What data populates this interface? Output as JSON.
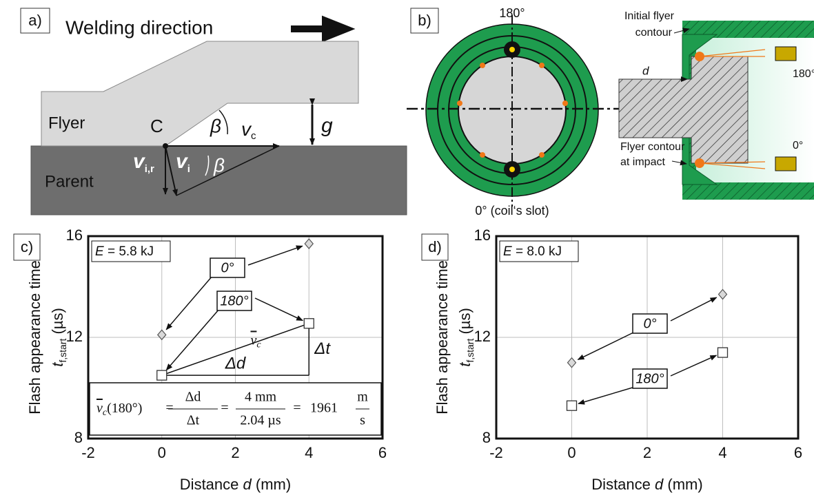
{
  "panel_a": {
    "label": "a)",
    "welding_direction": "Welding direction",
    "flyer": "Flyer",
    "parent": "Parent",
    "collision_point": "C",
    "angle": "β",
    "gap": "g",
    "collision_velocity": {
      "symbol": "v",
      "subscript": "c"
    },
    "impact_velocity": {
      "symbol": "v",
      "subscript": "i"
    },
    "radial_velocity": {
      "symbol": "v",
      "subscript": "i,r"
    }
  },
  "panel_b": {
    "label": "b)",
    "top_angle": "180°",
    "bottom_angle": "0° (coil‘s slot)",
    "initial_contour": [
      "Initial flyer",
      "contour"
    ],
    "distance": "d",
    "sensor_top": "180°",
    "sensor_bottom": "0°",
    "impact_contour": [
      "Flyer contour",
      "at impact"
    ]
  },
  "chart_data": [
    {
      "type": "scatter",
      "panel_label": "c)",
      "energy": {
        "symbol": "E",
        "text": " = 5.8 kJ"
      },
      "x_label": {
        "text": "Distance ",
        "symbol": "d",
        "unit": " (mm)"
      },
      "y_label": {
        "title": "Flash appearance time",
        "symbol": "t",
        "subscript": "f,start",
        "unit": " (µs)"
      },
      "xlim": [
        -2,
        6
      ],
      "xticks": [
        -2,
        0,
        2,
        4,
        6
      ],
      "ylim": [
        8,
        16
      ],
      "yticks": [
        8,
        12,
        16
      ],
      "grid": true,
      "series": [
        {
          "name": "0°",
          "marker": "diamond",
          "color": "#d9d9d9",
          "x": [
            0,
            4
          ],
          "values": [
            12.1,
            15.7
          ]
        },
        {
          "name": "180°",
          "marker": "square",
          "color": "#ffffff",
          "x": [
            0,
            4
          ],
          "values": [
            10.5,
            12.55
          ]
        }
      ],
      "annotations": {
        "delta_d": "Δd",
        "delta_t": "Δt",
        "mean_velocity": {
          "symbol": "v",
          "subscript": "c"
        },
        "formula": {
          "symbol": "v",
          "subscript": "c",
          "argument": "(180°)",
          "equals": "=",
          "delta_numerator": "Δd",
          "delta_denominator": "Δt",
          "numerator": "4 mm",
          "denominator": "2.04 µs",
          "result": "1961",
          "unit_numerator": "m",
          "unit_denominator": "s"
        }
      }
    },
    {
      "type": "scatter",
      "panel_label": "d)",
      "energy": {
        "symbol": "E",
        "text": " = 8.0 kJ"
      },
      "x_label": {
        "text": "Distance ",
        "symbol": "d",
        "unit": " (mm)"
      },
      "y_label": {
        "title": "Flash appearance time",
        "symbol": "t",
        "subscript": "f,start",
        "unit": " (µs)"
      },
      "xlim": [
        -2,
        6
      ],
      "xticks": [
        -2,
        0,
        2,
        4,
        6
      ],
      "ylim": [
        8,
        16
      ],
      "yticks": [
        8,
        12,
        16
      ],
      "grid": true,
      "series": [
        {
          "name": "0°",
          "marker": "diamond",
          "color": "#d9d9d9",
          "x": [
            0,
            4
          ],
          "values": [
            11.0,
            13.7
          ]
        },
        {
          "name": "180°",
          "marker": "square",
          "color": "#ffffff",
          "x": [
            0,
            4
          ],
          "values": [
            9.3,
            11.4
          ]
        }
      ]
    }
  ]
}
